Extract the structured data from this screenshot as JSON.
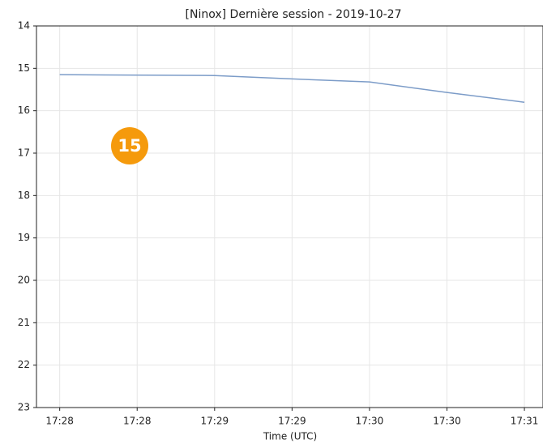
{
  "chart_data": {
    "type": "line",
    "title": "[Ninox] Dernière session - 2019-10-27",
    "x_label": "Time (UTC)",
    "x": [
      1048,
      1049,
      1049.5,
      1050,
      1050.5,
      1051
    ],
    "series": [
      {
        "color": "#7c9cc8",
        "values": [
          15.15,
          15.17,
          15.25,
          15.32,
          15.57,
          15.8
        ]
      }
    ],
    "xlim": [
      1047.85,
      1051.12
    ],
    "xticks": [
      {
        "value": 1048,
        "label": "17:28"
      },
      {
        "value": 1048.5,
        "label": "17:28"
      },
      {
        "value": 1049,
        "label": "17:29"
      },
      {
        "value": 1049.5,
        "label": "17:29"
      },
      {
        "value": 1050,
        "label": "17:30"
      },
      {
        "value": 1050.5,
        "label": "17:30"
      },
      {
        "value": 1051,
        "label": "17:31"
      }
    ],
    "ylim": [
      23,
      14
    ],
    "yticks": [
      14,
      15,
      16,
      17,
      18,
      19,
      20,
      21,
      22,
      23
    ],
    "grid": true
  },
  "badge": "15"
}
